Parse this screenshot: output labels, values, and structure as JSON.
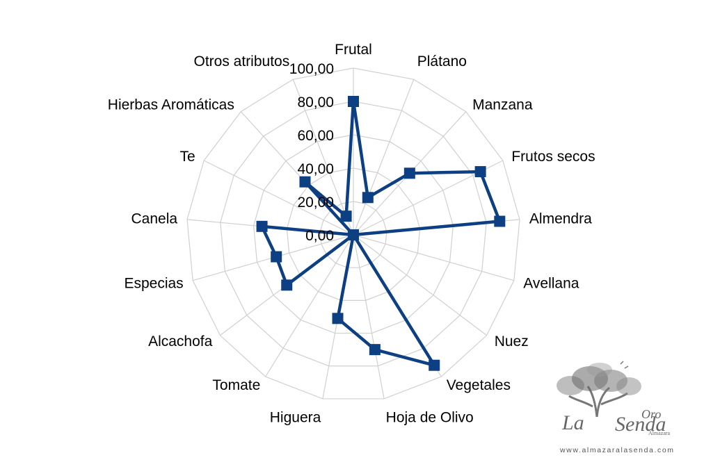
{
  "chart_data": {
    "type": "radar",
    "categories": [
      "Frutal",
      "Plátano",
      "Manzana",
      "Frutos secos",
      "Almendra",
      "Avellana",
      "Nuez",
      "Vegetales",
      "Hoja de Olivo",
      "Higuera",
      "Tomate",
      "Alcachofa",
      "Especias",
      "Canela",
      "Te",
      "Hierbas Aromáticas",
      "Otros atributos"
    ],
    "series": [
      {
        "values": [
          80,
          24,
          50,
          85,
          88,
          0,
          0,
          92,
          70,
          51,
          0,
          50,
          48,
          55,
          0,
          43,
          12
        ],
        "color": "#0d3f83"
      }
    ],
    "tick_labels": [
      "0,00",
      "20,00",
      "40,00",
      "60,00",
      "80,00",
      "100,00"
    ],
    "rlim": [
      0,
      100
    ],
    "grid": true,
    "legend": "none"
  },
  "watermark": {
    "brand_left": "La",
    "brand_right": "Senda",
    "brand_sub": "Oro",
    "brand_small": "Almazara",
    "url": "www.almazaralasenda.com"
  }
}
